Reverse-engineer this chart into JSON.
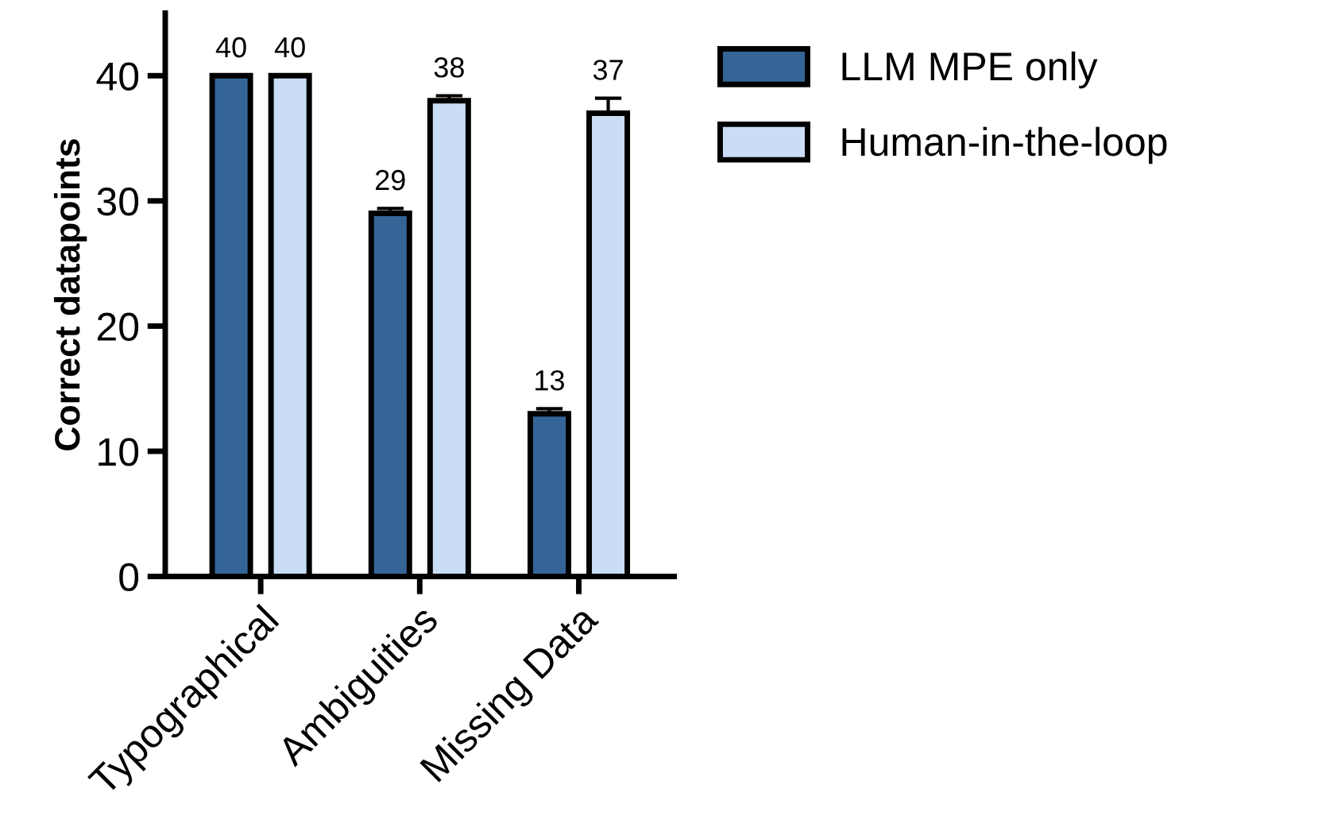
{
  "chart_data": {
    "type": "bar",
    "ylabel": "Correct datapoints",
    "categories": [
      "Typographical",
      "Ambiguities",
      "Missing Data"
    ],
    "series": [
      {
        "name": "LLM MPE only",
        "color": "#356597",
        "values": [
          40,
          29,
          13
        ],
        "errors": [
          null,
          0.4,
          0.4
        ]
      },
      {
        "name": "Human-in-the-loop",
        "color": "#c9ddf5",
        "values": [
          40,
          38,
          37
        ],
        "errors": [
          null,
          0.4,
          1.2
        ]
      }
    ],
    "ylim": [
      0,
      45
    ],
    "yticks": [
      0,
      10,
      20,
      30,
      40
    ],
    "grid": false,
    "legend": "top right",
    "data_labels": true
  }
}
